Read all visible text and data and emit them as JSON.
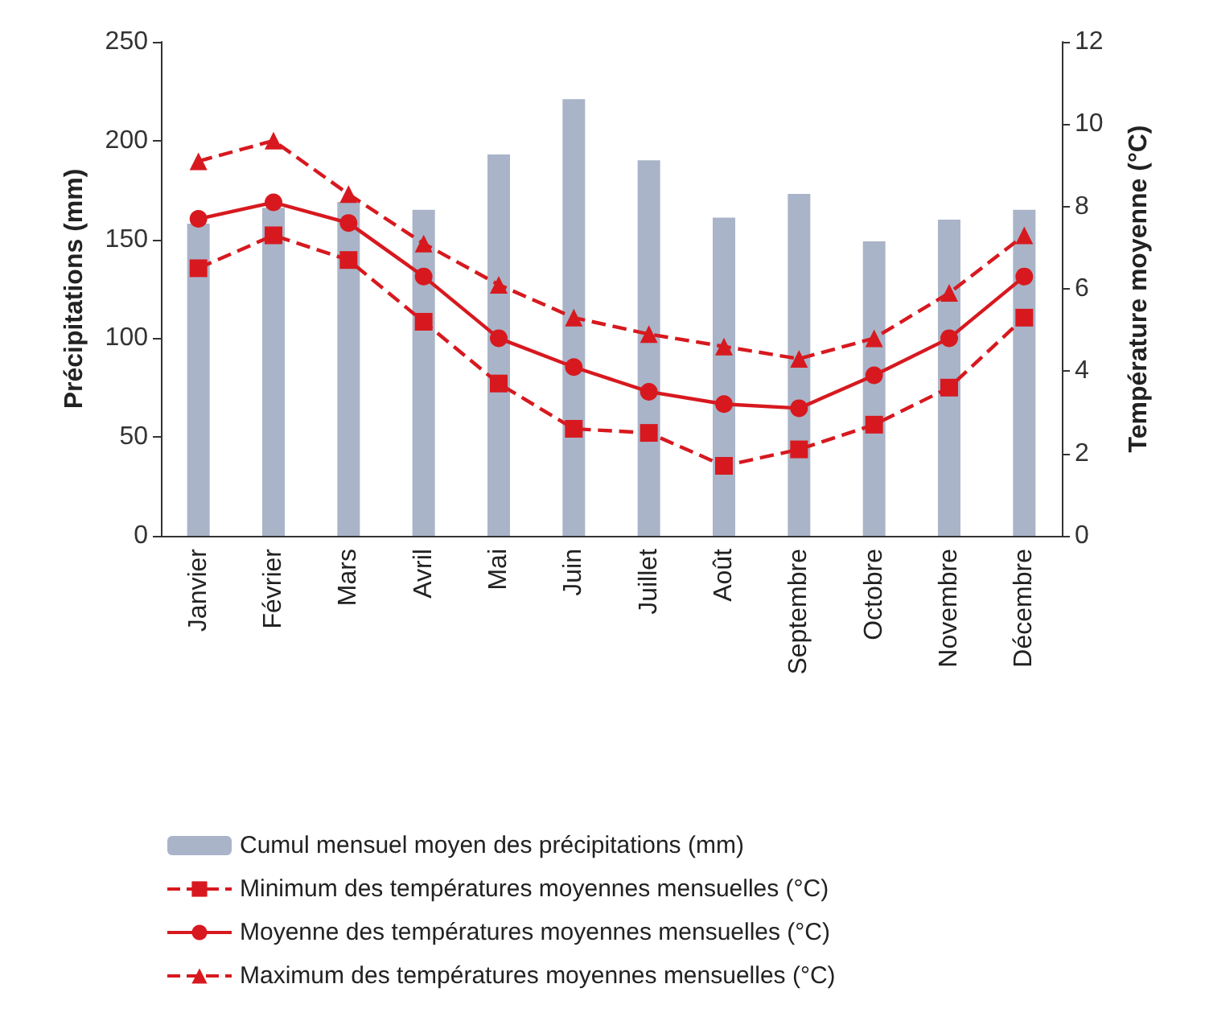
{
  "chart_data": {
    "type": "bar",
    "ylabel": "Précipitations (mm)",
    "y2label": "Température moyenne (°C)",
    "categories": [
      "Janvier",
      "Février",
      "Mars",
      "Avril",
      "Mai",
      "Juin",
      "Juillet",
      "Août",
      "Septembre",
      "Octobre",
      "Novembre",
      "Décembre"
    ],
    "series": [
      {
        "name": "Cumul mensuel moyen des précipitations (mm)",
        "color": "#a9b4c8",
        "values": [
          158,
          166,
          169,
          165,
          193,
          221,
          190,
          161,
          173,
          149,
          160,
          165
        ]
      },
      {
        "name": "Minimum des températures moyennes mensuelles (°C)",
        "type": "line",
        "axis": "y2",
        "color": "#d7191f",
        "marker": "square",
        "line_style": "dashed",
        "values": [
          6.5,
          7.3,
          6.7,
          5.2,
          3.7,
          2.6,
          2.5,
          1.7,
          2.1,
          2.7,
          3.6,
          5.3
        ]
      },
      {
        "name": "Moyenne des températures moyennes mensuelles (°C)",
        "type": "line",
        "axis": "y2",
        "color": "#d7191f",
        "marker": "circle",
        "line_style": "solid",
        "values": [
          7.7,
          8.1,
          7.6,
          6.3,
          4.8,
          4.1,
          3.5,
          3.2,
          3.1,
          3.9,
          4.8,
          6.3
        ]
      },
      {
        "name": "Maximum des températures moyennes mensuelles (°C)",
        "type": "line",
        "axis": "y2",
        "color": "#d7191f",
        "marker": "triangle",
        "line_style": "dashed",
        "values": [
          9.1,
          9.6,
          8.3,
          7.1,
          6.1,
          5.3,
          4.9,
          4.6,
          4.3,
          4.8,
          5.9,
          7.3
        ]
      }
    ],
    "ylim": [
      0,
      250
    ],
    "yticks": [
      0,
      50,
      100,
      150,
      200,
      250
    ],
    "y2lim": [
      0,
      12
    ],
    "y2ticks": [
      0,
      2,
      4,
      6,
      8,
      10,
      12
    ],
    "legend": "bottom"
  }
}
